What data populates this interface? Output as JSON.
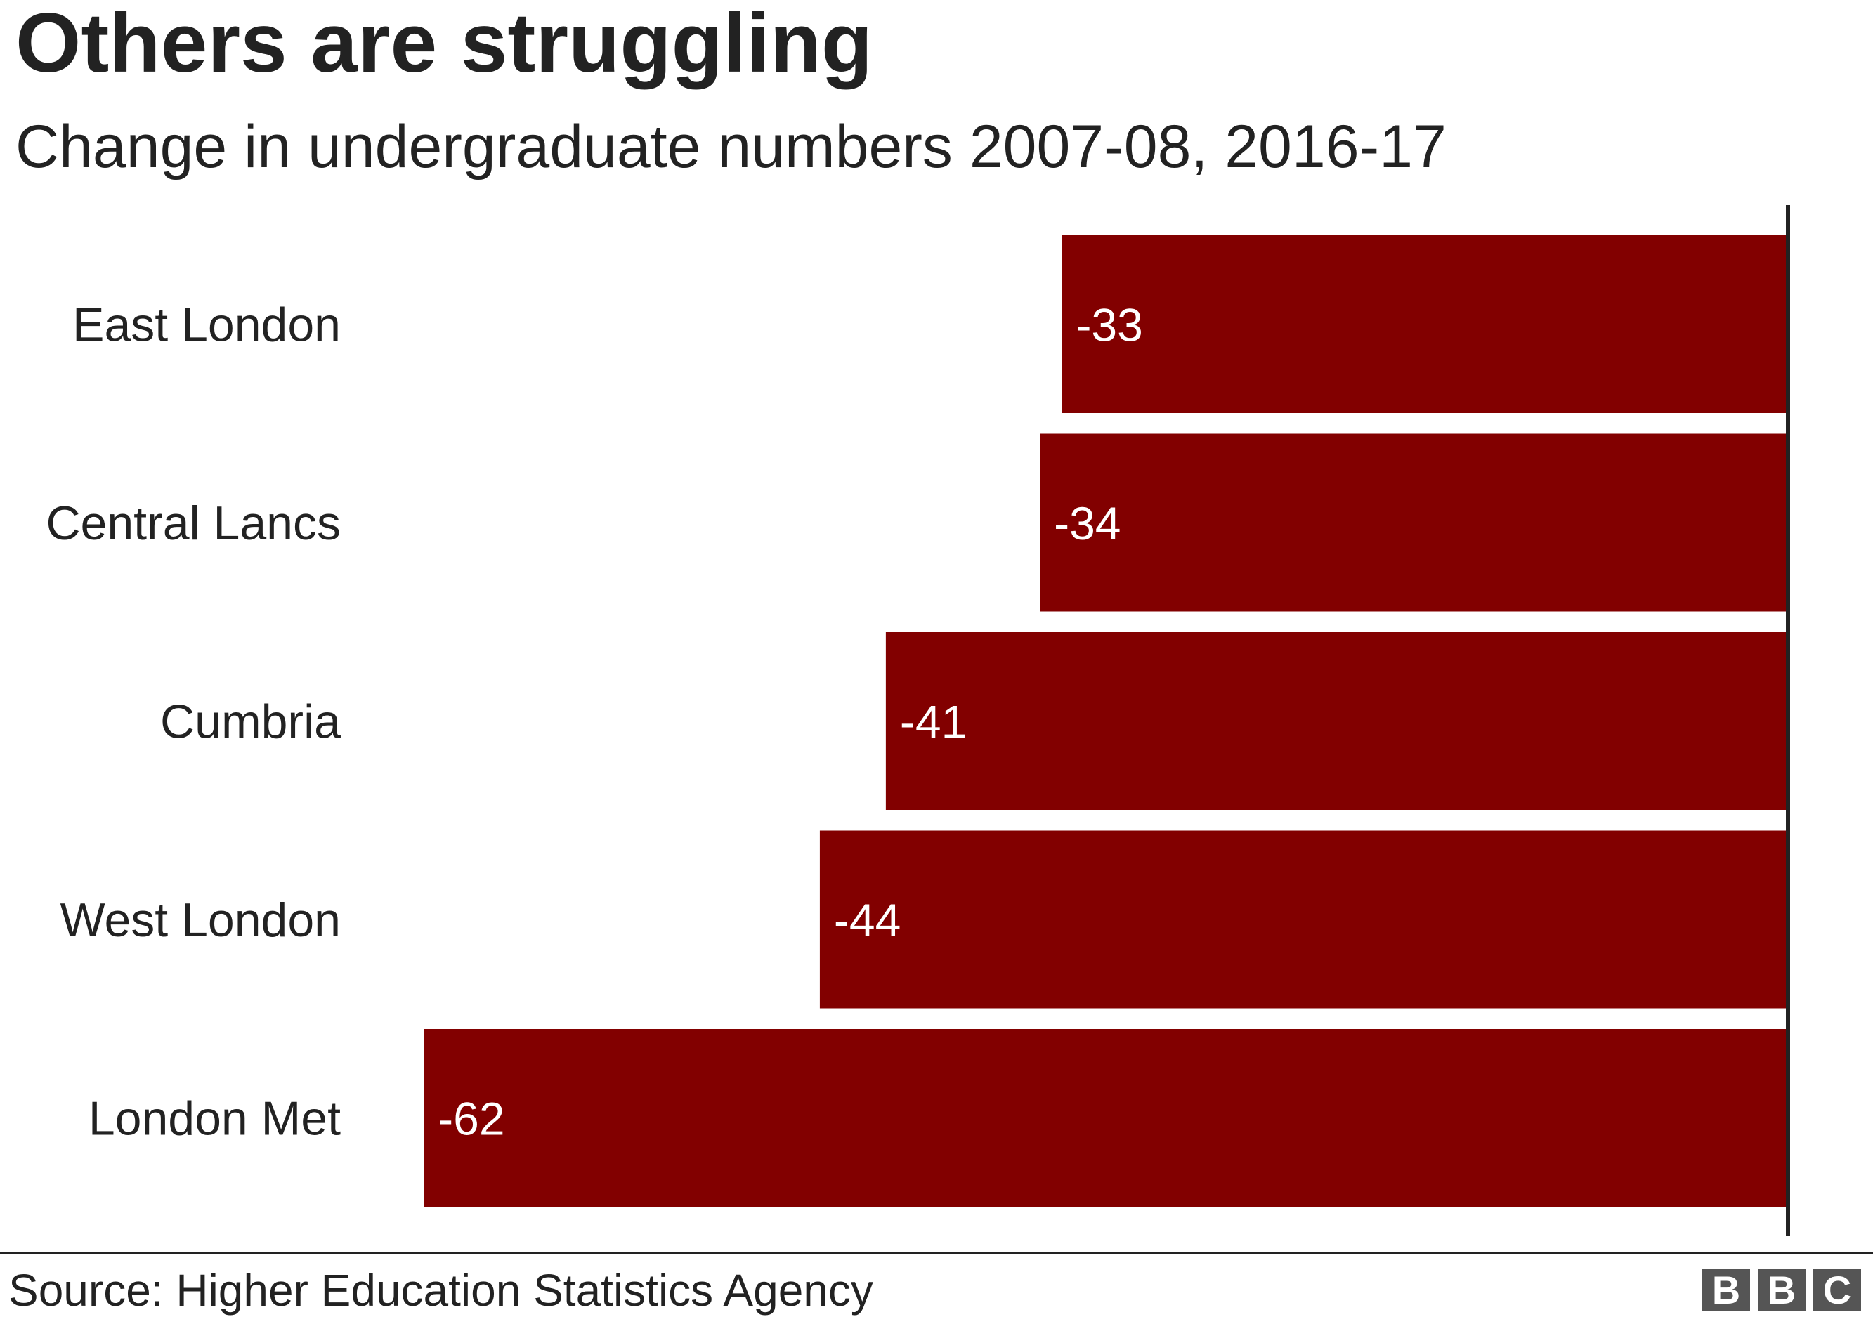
{
  "title": "Others are struggling",
  "subtitle": "Change in undergraduate numbers 2007-08, 2016-17",
  "source": "Source: Higher Education Statistics Agency",
  "logo": [
    "B",
    "B",
    "C"
  ],
  "colors": {
    "bar": "#820000",
    "axis": "#222222",
    "value_label": "#ffffff"
  },
  "chart_data": {
    "type": "bar",
    "orientation": "horizontal",
    "title": "Others are struggling",
    "subtitle": "Change in undergraduate numbers 2007-08, 2016-17",
    "categories": [
      "East London",
      "Central Lancs",
      "Cumbria",
      "West London",
      "London Met"
    ],
    "values": [
      -33,
      -34,
      -41,
      -44,
      -62
    ],
    "value_labels": [
      "-33",
      "-34",
      "-41",
      "-44",
      "-62"
    ],
    "xlim": [
      -64,
      0
    ],
    "grid": false,
    "xlabel": "",
    "ylabel": ""
  }
}
